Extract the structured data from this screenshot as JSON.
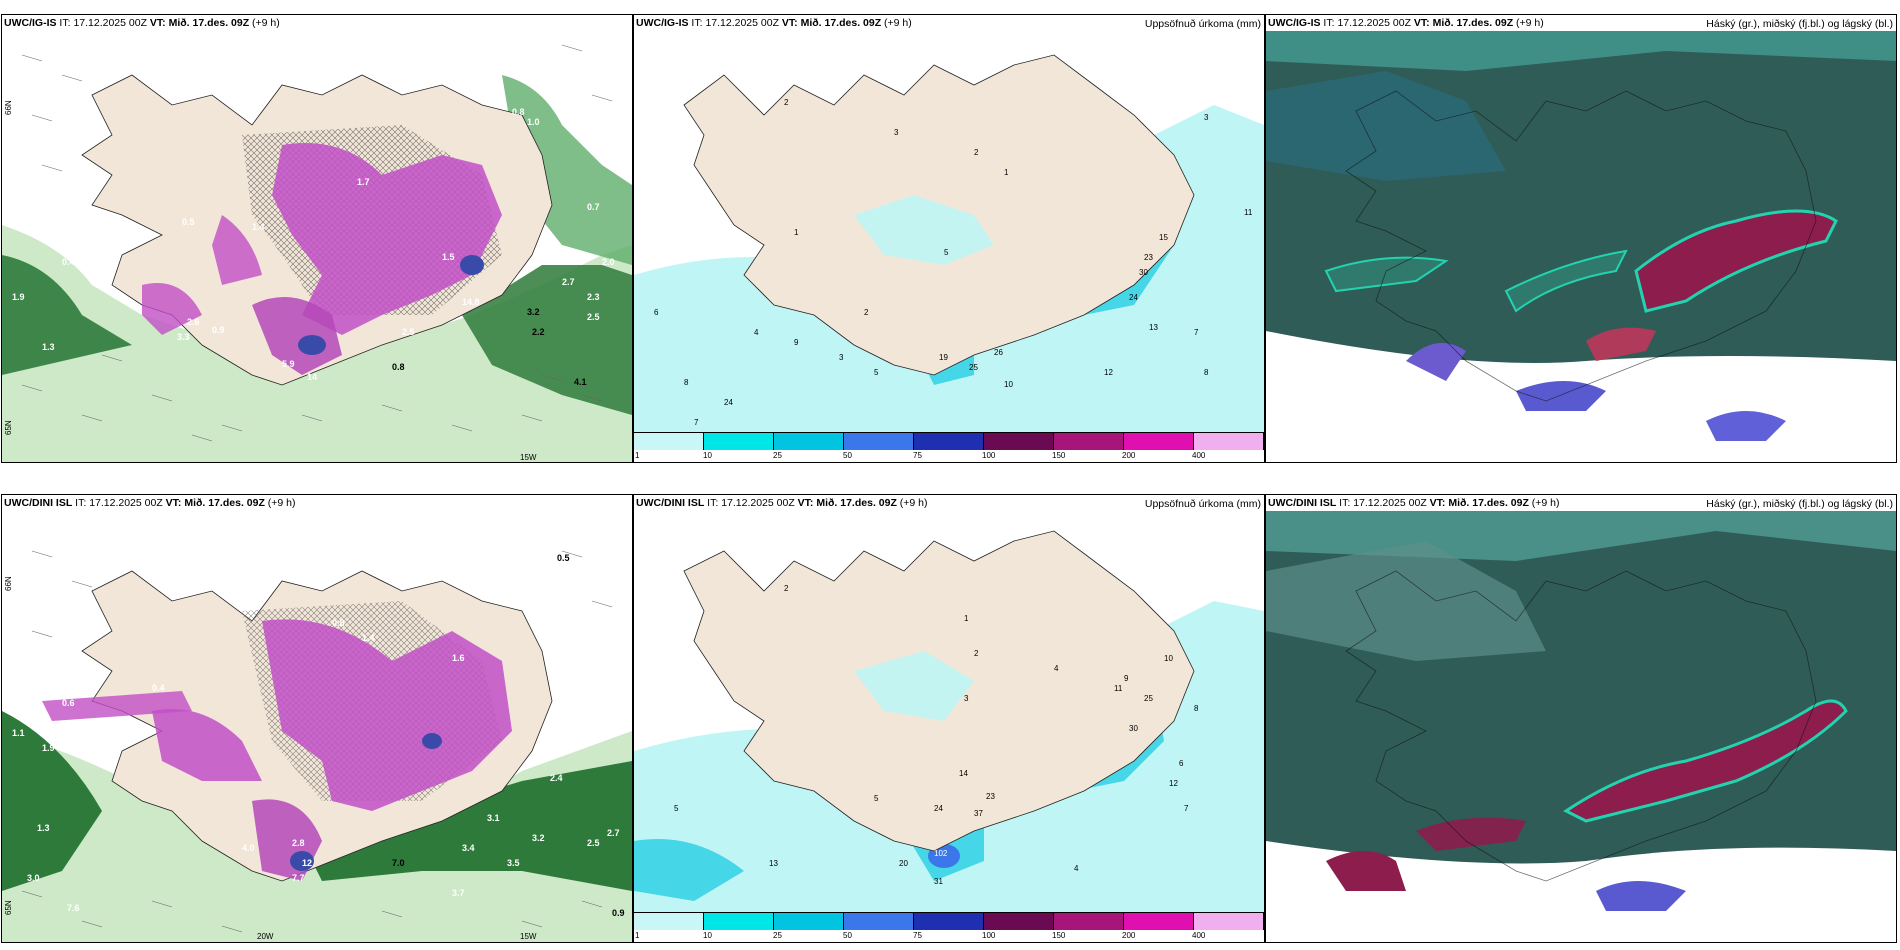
{
  "panels": [
    {
      "id": "p1",
      "title_model": "UWC/IG-IS",
      "it_label": "IT:",
      "it": "17.12.2025 00Z",
      "vt_label": "VT:",
      "vt": "Mið. 17.des. 09Z",
      "lead": "(+9 h)",
      "right": "",
      "lat_labels": [
        "66N",
        "65N"
      ],
      "lon_labels": [
        "15W"
      ],
      "values": [
        "0.6",
        "0.8",
        "1.0",
        "1.4",
        "1.5",
        "1.7",
        "0.9",
        "0.5",
        "0.3",
        "0.4",
        "2.5",
        "2.6",
        "3.3",
        "5.9",
        "14",
        "0.9",
        "0.8",
        "4.1",
        "2.2",
        "3.2",
        "2.5",
        "2.3",
        "14.8",
        "1.9",
        "2.0",
        "2.7",
        "0.7",
        "1.3"
      ]
    },
    {
      "id": "p2",
      "title_model": "UWC/IG-IS",
      "it_label": "IT:",
      "it": "17.12.2025 00Z",
      "vt_label": "VT:",
      "vt": "Mið. 17.des. 09Z",
      "lead": "(+9 h)",
      "right": "Uppsöfnuð úrkoma (mm)",
      "values": [
        "2",
        "1",
        "3",
        "2",
        "5",
        "1",
        "2",
        "6",
        "4",
        "8",
        "9",
        "3",
        "5",
        "24",
        "7",
        "8",
        "26",
        "19",
        "25",
        "10",
        "12",
        "15",
        "23",
        "30",
        "24",
        "13",
        "7",
        "11",
        "3"
      ]
    },
    {
      "id": "p3",
      "title_model": "UWC/IG-IS",
      "it_label": "IT:",
      "it": "17.12.2025 00Z",
      "vt_label": "VT:",
      "vt": "Mið. 17.des. 09Z",
      "lead": "(+9 h)",
      "right": "Háský (gr.), miðský (fj.bl.) og lágský (bl.)"
    },
    {
      "id": "p4",
      "title_model": "UWC/DINI ISL",
      "it_label": "IT:",
      "it": "17.12.2025 00Z",
      "vt_label": "VT:",
      "vt": "Mið. 17.des. 09Z",
      "lead": "(+9 h)",
      "right": "",
      "lat_labels": [
        "66N",
        "65N"
      ],
      "lon_labels": [
        "20W",
        "15W"
      ],
      "values": [
        "0.5",
        "1.0",
        "0.8",
        "1.4",
        "1.6",
        "0.6",
        "1.1",
        "1.9",
        "0.4",
        "2.8",
        "4.0",
        "7.7",
        "12",
        "7.0",
        "3.4",
        "3.1",
        "3.2",
        "2.5",
        "2.7",
        "3.5",
        "3.7",
        "7.6",
        "3.0",
        "0.9",
        "2.4",
        "1.3"
      ]
    },
    {
      "id": "p5",
      "title_model": "UWC/DINI ISL",
      "it_label": "IT:",
      "it": "17.12.2025 00Z",
      "vt_label": "VT:",
      "vt": "Mið. 17.des. 09Z",
      "lead": "(+9 h)",
      "right": "Uppsöfnuð úrkoma (mm)",
      "values": [
        "2",
        "1",
        "2",
        "3",
        "4",
        "5",
        "6",
        "7",
        "8",
        "9",
        "10",
        "12",
        "14",
        "20",
        "23",
        "24",
        "25",
        "30",
        "31",
        "37",
        "102",
        "13",
        "5",
        "4",
        "11"
      ]
    },
    {
      "id": "p6",
      "title_model": "UWC/DINI ISL",
      "it_label": "IT:",
      "it": "17.12.2025 00Z",
      "vt_label": "VT:",
      "vt": "Mið. 17.des. 09Z",
      "lead": "(+9 h)",
      "right": "Háský (gr.), miðský (fj.bl.) og lágský (bl.)"
    }
  ],
  "colorbar": {
    "labels": [
      "1",
      "10",
      "25",
      "50",
      "75",
      "100",
      "150",
      "200",
      "400"
    ],
    "colors": [
      "#c9f7f7",
      "#00e5e5",
      "#00c4e0",
      "#3b77e8",
      "#1e2fb0",
      "#6a0a52",
      "#a8157a",
      "#e010b0",
      "#f0b0f0"
    ]
  },
  "colors": {
    "land": "#f2e6d8",
    "sea": "#ffffff",
    "cloud_dark": "#2f5c57",
    "cloud_teal": "#1d8b80",
    "cloud_red": "#8c1d4c"
  }
}
